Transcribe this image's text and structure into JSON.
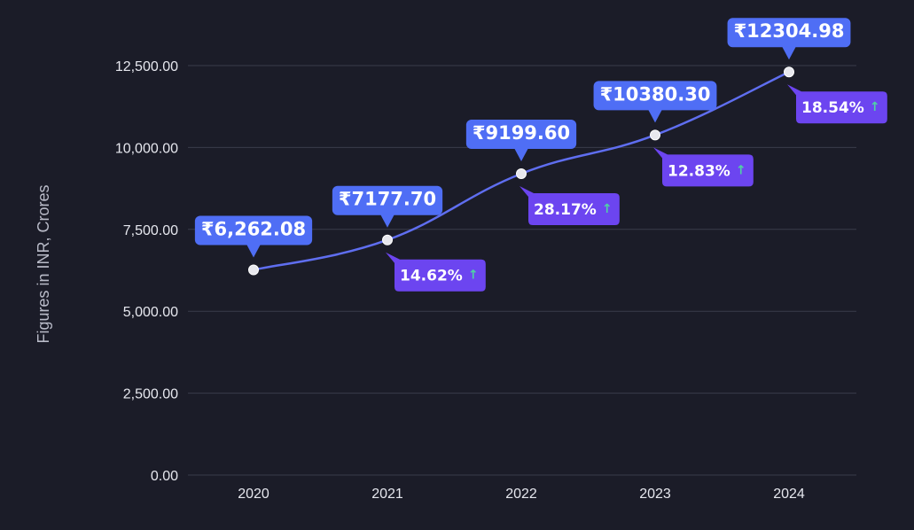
{
  "chart_data": {
    "type": "line",
    "ylabel": "Figures in INR, Crores",
    "ylim": [
      0,
      12500
    ],
    "yticks": [
      "0.00",
      "2,500.00",
      "5,000.00",
      "7,500.00",
      "10,000.00",
      "12,500.00"
    ],
    "categories": [
      "2020",
      "2021",
      "2022",
      "2023",
      "2024"
    ],
    "values": [
      6262.08,
      7177.7,
      9199.6,
      10380.3,
      12304.98
    ],
    "value_labels": [
      "₹6,262.08",
      "₹7177.70",
      "₹9199.60",
      "₹10380.30",
      "₹12304.98"
    ],
    "growth_labels": [
      "",
      "14.62%",
      "28.17%",
      "12.83%",
      "18.54%"
    ],
    "growth_arrow": "↑",
    "grid": true,
    "colors": {
      "line": "#5f6ef0",
      "value_label_bg": "#4f6ef5",
      "growth_label_bg": "#6c45f0",
      "growth_arrow": "#4fd1a5",
      "grid": "#3a3c4a",
      "marker": "#e8e8ee"
    }
  }
}
